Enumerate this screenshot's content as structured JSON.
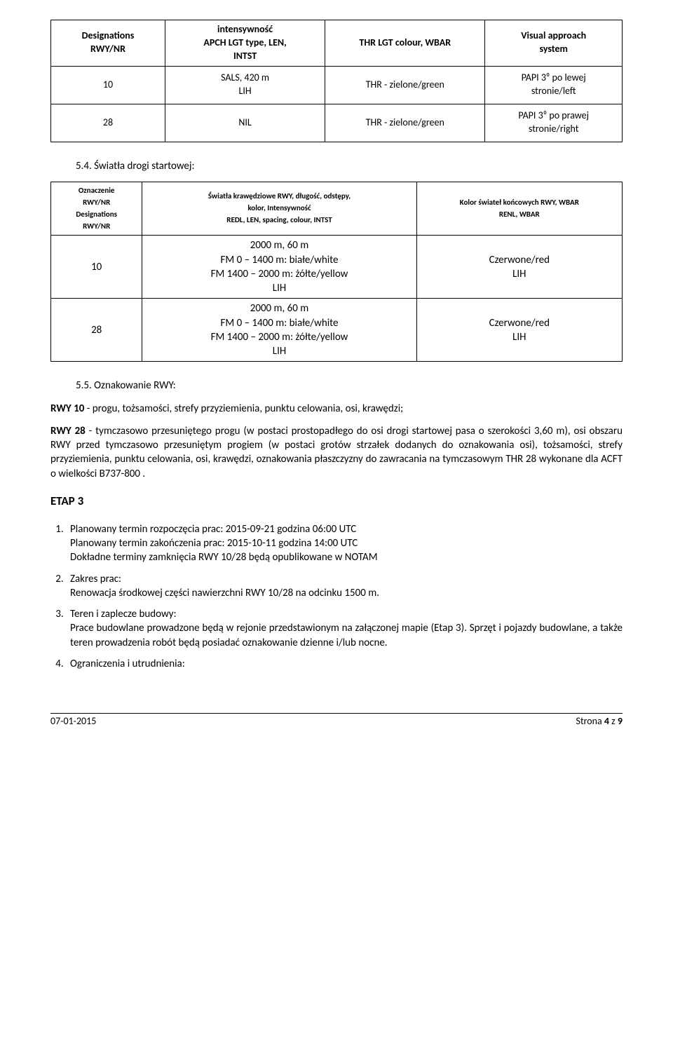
{
  "table1": {
    "headers": {
      "c1": "Designations\nRWY/NR",
      "c2": "intensywność\nAPCH LGT type, LEN,\nINTST",
      "c3": "THR LGT colour, WBAR",
      "c4": "Visual approach\nsystem"
    },
    "rows": [
      {
        "c1": "10",
        "c2": "SALS, 420 m\nLIH",
        "c3": "THR - zielone/green",
        "c4": "PAPI 3⁰ po lewej\nstronie/left"
      },
      {
        "c1": "28",
        "c2": "NIL",
        "c3": "THR - zielone/green",
        "c4": "PAPI 3⁰ po prawej\nstronie/right"
      }
    ]
  },
  "sec54_title": "5.4. Światła drogi startowej:",
  "table2": {
    "headers": {
      "c1a": "Oznaczenie\nRWY/NR",
      "c1b": "Designations\nRWY/NR",
      "c2a": "Światła krawędziowe RWY, długość, odstępy,\nkolor, Intensywność",
      "c2b": "REDL, LEN, spacing, colour, INTST",
      "c3a": "Kolor świateł końcowych RWY, WBAR",
      "c3b": "RENL, WBAR"
    },
    "rows": [
      {
        "c1": "10",
        "c2": "2000 m, 60 m\nFM 0 – 1400 m: białe/white\nFM 1400 – 2000 m: żółte/yellow\nLIH",
        "c3": "Czerwone/red\nLIH"
      },
      {
        "c1": "28",
        "c2": "2000 m, 60 m\nFM 0 – 1400 m: białe/white\nFM 1400 – 2000 m: żółte/yellow\nLIH",
        "c3": "Czerwone/red\nLIH"
      }
    ]
  },
  "sec55_title": "5.5. Oznakowanie RWY:",
  "para_rwy10": "RWY 10 - progu, tożsamości, strefy przyziemienia, punktu celowania, osi, krawędzi;",
  "para_rwy28": "RWY 28 - tymczasowo przesuniętego progu (w postaci prostopadłego do osi drogi startowej pasa o szerokości 3,60 m), osi obszaru RWY przed tymczasowo przesuniętym progiem (w postaci grotów strzałek dodanych do oznakowania osi), tożsamości, strefy przyziemienia, punktu celowania, osi, krawędzi, oznakowania płaszczyzny do zawracania na tymczasowym THR 28 wykonane dla ACFT o wielkości B737-800 .",
  "etap3_title": "ETAP 3",
  "etap3_items": [
    {
      "lines": [
        "Planowany termin rozpoczęcia prac: 2015-09-21 godzina 06:00 UTC",
        "Planowany termin zakończenia prac: 2015-10-11 godzina 14:00 UTC",
        "Dokładne terminy zamknięcia RWY 10/28 będą opublikowane w NOTAM"
      ]
    },
    {
      "lines": [
        "Zakres prac:",
        "Renowacja środkowej części nawierzchni RWY 10/28 na odcinku 1500 m."
      ]
    },
    {
      "lines": [
        "Teren i zaplecze budowy:",
        "Prace budowlane prowadzone będą w rejonie przedstawionym na załączonej mapie (Etap 3). Sprzęt i pojazdy budowlane, a także teren prowadzenia robót będą posiadać oznakowanie dzienne i/lub nocne."
      ]
    },
    {
      "lines": [
        "Ograniczenia i utrudnienia:"
      ]
    }
  ],
  "footer": {
    "left": "07-01-2015",
    "right_prefix": "Strona ",
    "right_page": "4",
    "right_mid": " z ",
    "right_total": "9"
  },
  "colors": {
    "text": "#000000",
    "bg": "#ffffff",
    "border": "#000000"
  }
}
